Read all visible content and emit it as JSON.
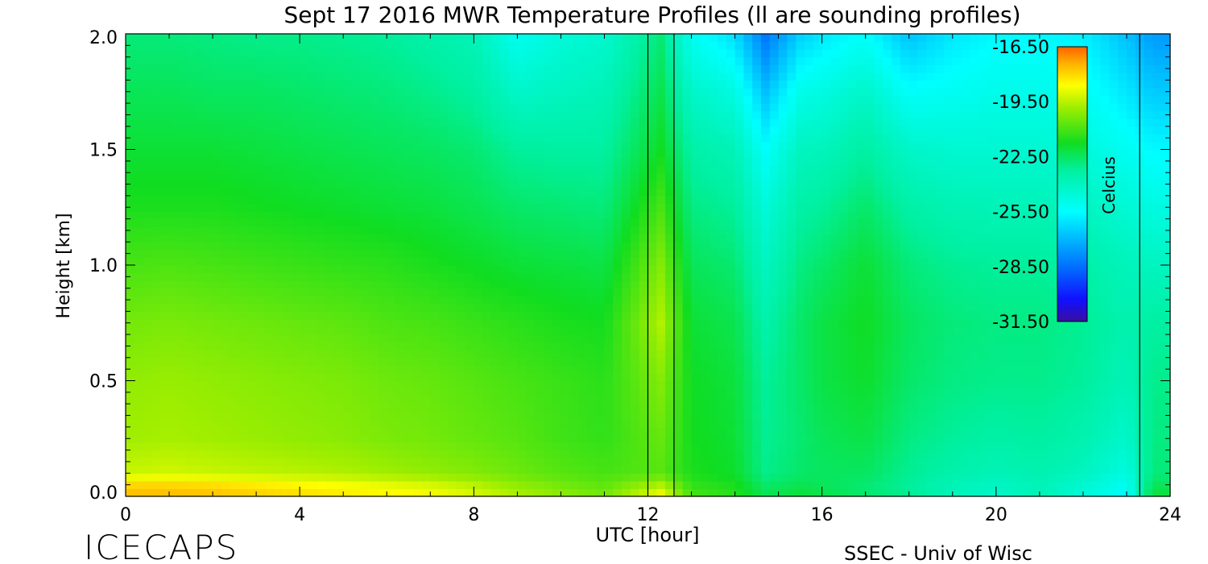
{
  "chart_data": {
    "type": "heatmap",
    "title": "Sept 17 2016 MWR Temperature Profiles (ll are sounding profiles)",
    "xlabel": "UTC [hour]",
    "ylabel": "Height [km]",
    "xlim": [
      0,
      24
    ],
    "ylim": [
      0.0,
      2.0
    ],
    "x_ticks": [
      "0",
      "4",
      "8",
      "12",
      "16",
      "20",
      "24"
    ],
    "y_ticks": [
      "0.0",
      "0.5",
      "1.0",
      "1.5",
      "2.0"
    ],
    "colorbar": {
      "label": "Celcius",
      "ticks": [
        "-16.50",
        "-19.50",
        "-22.50",
        "-25.50",
        "-28.50",
        "-31.50"
      ],
      "range": [
        -31.5,
        -16.5
      ]
    },
    "sounding_times_utc": [
      12.0,
      12.6,
      23.3
    ],
    "profile_hours": [
      0,
      1,
      2,
      3,
      4,
      5,
      6,
      7,
      8,
      9,
      10,
      11,
      12.3,
      13,
      14,
      14.7,
      15.5,
      16,
      17,
      18,
      19,
      20,
      21,
      22,
      23,
      23.6
    ],
    "heights_km": [
      0.0,
      0.05,
      0.1,
      0.25,
      0.5,
      0.75,
      1.0,
      1.25,
      1.5,
      1.75,
      2.0
    ],
    "temperatures_c": [
      [
        -17.5,
        -18.0,
        -19.3,
        -19.8,
        -20.0,
        -20.4,
        -21.0,
        -21.6,
        -22.0,
        -22.4,
        -22.8
      ],
      [
        -17.5,
        -18.0,
        -19.2,
        -19.7,
        -19.9,
        -20.3,
        -20.9,
        -21.6,
        -22.0,
        -22.4,
        -22.8
      ],
      [
        -17.6,
        -18.1,
        -19.3,
        -19.8,
        -20.0,
        -20.4,
        -21.0,
        -21.6,
        -22.0,
        -22.5,
        -22.9
      ],
      [
        -17.8,
        -18.3,
        -19.4,
        -19.9,
        -20.1,
        -20.5,
        -21.1,
        -21.7,
        -22.1,
        -22.5,
        -23.0
      ],
      [
        -18.0,
        -18.5,
        -19.5,
        -20.0,
        -20.2,
        -20.6,
        -21.2,
        -21.8,
        -22.2,
        -22.6,
        -23.0
      ],
      [
        -18.2,
        -18.7,
        -19.6,
        -20.1,
        -20.3,
        -20.7,
        -21.3,
        -21.9,
        -22.3,
        -22.7,
        -23.1
      ],
      [
        -18.4,
        -18.9,
        -19.8,
        -20.3,
        -20.5,
        -20.9,
        -21.4,
        -22.0,
        -22.4,
        -22.8,
        -23.2
      ],
      [
        -18.6,
        -19.1,
        -20.0,
        -20.4,
        -20.6,
        -21.0,
        -21.6,
        -22.1,
        -22.5,
        -23.0,
        -23.5
      ],
      [
        -19.0,
        -19.5,
        -20.2,
        -20.6,
        -20.8,
        -21.2,
        -21.8,
        -22.3,
        -22.7,
        -23.3,
        -23.8
      ],
      [
        -19.6,
        -20.0,
        -20.5,
        -20.8,
        -21.0,
        -21.4,
        -22.0,
        -22.6,
        -23.2,
        -24.2,
        -25.2
      ],
      [
        -20.0,
        -20.4,
        -20.8,
        -21.1,
        -21.2,
        -21.6,
        -22.1,
        -22.7,
        -23.3,
        -24.0,
        -24.6
      ],
      [
        -20.4,
        -20.7,
        -21.0,
        -21.3,
        -21.4,
        -21.7,
        -22.2,
        -22.8,
        -23.3,
        -23.8,
        -24.4
      ],
      [
        -18.6,
        -19.6,
        -20.8,
        -20.6,
        -20.2,
        -19.6,
        -20.2,
        -21.0,
        -21.8,
        -22.3,
        -22.8
      ],
      [
        -21.0,
        -21.3,
        -21.6,
        -21.7,
        -21.8,
        -22.0,
        -22.4,
        -22.9,
        -23.4,
        -24.2,
        -25.2
      ],
      [
        -21.4,
        -21.6,
        -21.9,
        -22.0,
        -22.1,
        -22.3,
        -22.7,
        -23.2,
        -23.8,
        -24.8,
        -26.2
      ],
      [
        -22.3,
        -22.6,
        -23.0,
        -23.1,
        -23.2,
        -23.5,
        -24.0,
        -24.6,
        -25.4,
        -26.8,
        -28.4
      ],
      [
        -22.0,
        -22.3,
        -22.6,
        -22.7,
        -22.6,
        -22.6,
        -22.9,
        -23.4,
        -24.0,
        -25.0,
        -26.5
      ],
      [
        -22.2,
        -22.4,
        -22.5,
        -22.4,
        -22.2,
        -22.2,
        -22.6,
        -23.2,
        -23.9,
        -24.8,
        -26.0
      ],
      [
        -22.6,
        -22.7,
        -22.5,
        -22.2,
        -21.9,
        -21.8,
        -22.0,
        -22.6,
        -23.3,
        -24.2,
        -25.4
      ],
      [
        -23.0,
        -23.2,
        -23.1,
        -22.9,
        -22.6,
        -22.5,
        -22.8,
        -23.4,
        -24.2,
        -25.4,
        -26.8
      ],
      [
        -23.8,
        -23.8,
        -23.5,
        -23.2,
        -22.9,
        -22.8,
        -23.1,
        -23.7,
        -24.4,
        -25.2,
        -26.0
      ],
      [
        -24.2,
        -24.1,
        -23.8,
        -23.4,
        -23.0,
        -22.9,
        -23.2,
        -23.8,
        -24.4,
        -25.0,
        -25.6
      ],
      [
        -23.6,
        -23.8,
        -23.6,
        -23.3,
        -23.0,
        -22.9,
        -23.2,
        -23.8,
        -24.4,
        -25.0,
        -25.6
      ],
      [
        -24.6,
        -24.4,
        -24.0,
        -23.6,
        -23.2,
        -23.1,
        -23.4,
        -24.0,
        -24.6,
        -25.2,
        -25.8
      ],
      [
        -25.4,
        -25.2,
        -24.8,
        -24.3,
        -23.8,
        -23.6,
        -23.9,
        -24.5,
        -25.2,
        -26.0,
        -26.8
      ],
      [
        -22.0,
        -22.4,
        -22.8,
        -22.9,
        -23.0,
        -23.3,
        -24.0,
        -24.8,
        -25.6,
        -26.6,
        -27.6
      ]
    ]
  },
  "footer": {
    "left_text": "ICECAPS",
    "right_text": "SSEC - Univ of Wisc"
  }
}
